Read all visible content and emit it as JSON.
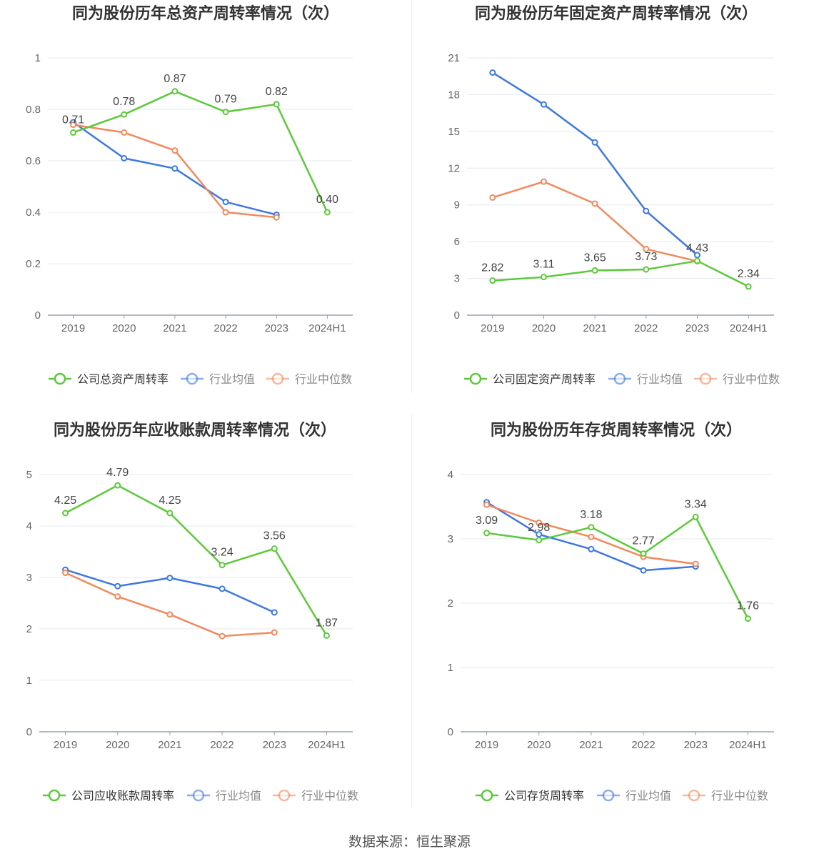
{
  "legend_common": [
    "行业均值",
    "行业中位数"
  ],
  "colors": {
    "company": "#5cc93a",
    "average": "#3f78e0",
    "median": "#f2895d",
    "grid": "#e6e8f0",
    "axis": "#9aa0ad"
  },
  "chart_data": [
    {
      "type": "line",
      "title": "同为股份历年总资产周转率情况（次）",
      "categories": [
        "2019",
        "2020",
        "2021",
        "2022",
        "2023",
        "2024H1"
      ],
      "ylim": [
        0,
        1
      ],
      "yticks": [
        "0",
        "0.2",
        "0.4",
        "0.6",
        "0.8",
        "1"
      ],
      "ytick_values": [
        0,
        0.2,
        0.4,
        0.6,
        0.8,
        1
      ],
      "series": [
        {
          "name": "公司总资产周转率",
          "key": "company",
          "values": [
            0.71,
            0.78,
            0.87,
            0.79,
            0.82,
            0.4
          ],
          "labels": [
            "0.71",
            "0.78",
            "0.87",
            "0.79",
            "0.82",
            "0.40"
          ]
        },
        {
          "name": "行业均值",
          "key": "average",
          "values": [
            0.75,
            0.61,
            0.57,
            0.44,
            0.39,
            null
          ]
        },
        {
          "name": "行业中位数",
          "key": "median",
          "values": [
            0.74,
            0.71,
            0.64,
            0.4,
            0.38,
            null
          ]
        }
      ]
    },
    {
      "type": "line",
      "title": "同为股份历年固定资产周转率情况（次）",
      "categories": [
        "2019",
        "2020",
        "2021",
        "2022",
        "2023",
        "2024H1"
      ],
      "ylim": [
        0,
        21
      ],
      "yticks": [
        "0",
        "3",
        "6",
        "9",
        "12",
        "15",
        "18",
        "21"
      ],
      "ytick_values": [
        0,
        3,
        6,
        9,
        12,
        15,
        18,
        21
      ],
      "series": [
        {
          "name": "公司固定资产周转率",
          "key": "company",
          "values": [
            2.82,
            3.11,
            3.65,
            3.73,
            4.43,
            2.34
          ],
          "labels": [
            "2.82",
            "3.11",
            "3.65",
            "3.73",
            "4.43",
            "2.34"
          ]
        },
        {
          "name": "行业均值",
          "key": "average",
          "values": [
            19.8,
            17.2,
            14.1,
            8.5,
            4.9,
            null
          ]
        },
        {
          "name": "行业中位数",
          "key": "median",
          "values": [
            9.6,
            10.9,
            9.1,
            5.4,
            4.4,
            null
          ]
        }
      ]
    },
    {
      "type": "line",
      "title": "同为股份历年应收账款周转率情况（次）",
      "categories": [
        "2019",
        "2020",
        "2021",
        "2022",
        "2023",
        "2024H1"
      ],
      "ylim": [
        0,
        5
      ],
      "yticks": [
        "0",
        "1",
        "2",
        "3",
        "4",
        "5"
      ],
      "ytick_values": [
        0,
        1,
        2,
        3,
        4,
        5
      ],
      "series": [
        {
          "name": "公司应收账款周转率",
          "key": "company",
          "values": [
            4.25,
            4.79,
            4.25,
            3.24,
            3.56,
            1.87
          ],
          "labels": [
            "4.25",
            "4.79",
            "4.25",
            "3.24",
            "3.56",
            "1.87"
          ]
        },
        {
          "name": "行业均值",
          "key": "average",
          "values": [
            3.15,
            2.83,
            2.99,
            2.78,
            2.32,
            null
          ]
        },
        {
          "name": "行业中位数",
          "key": "median",
          "values": [
            3.09,
            2.63,
            2.28,
            1.86,
            1.93,
            null
          ]
        }
      ]
    },
    {
      "type": "line",
      "title": "同为股份历年存货周转率情况（次）",
      "categories": [
        "2019",
        "2020",
        "2021",
        "2022",
        "2023",
        "2024H1"
      ],
      "ylim": [
        0,
        4
      ],
      "yticks": [
        "0",
        "1",
        "2",
        "3",
        "4"
      ],
      "ytick_values": [
        0,
        1,
        2,
        3,
        4
      ],
      "series": [
        {
          "name": "公司存货周转率",
          "key": "company",
          "values": [
            3.09,
            2.98,
            3.18,
            2.77,
            3.34,
            1.76
          ],
          "labels": [
            "3.09",
            "2.98",
            "3.18",
            "2.77",
            "3.34",
            "1.76"
          ]
        },
        {
          "name": "行业均值",
          "key": "average",
          "values": [
            3.57,
            3.07,
            2.84,
            2.51,
            2.57,
            null
          ]
        },
        {
          "name": "行业中位数",
          "key": "median",
          "values": [
            3.53,
            3.25,
            3.03,
            2.72,
            2.61,
            null
          ]
        }
      ]
    }
  ],
  "footer": {
    "source": "数据来源：恒生聚源"
  }
}
